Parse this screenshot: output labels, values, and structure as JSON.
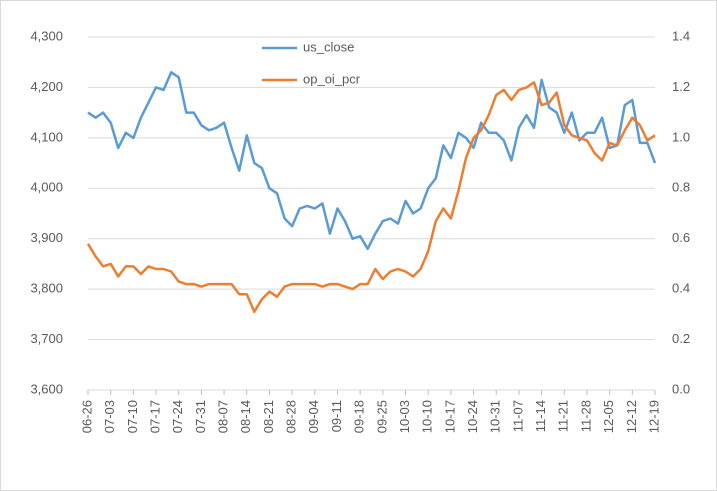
{
  "chart_data": {
    "type": "line",
    "categories": [
      "06-26",
      null,
      null,
      "07-03",
      null,
      null,
      "07-10",
      null,
      null,
      "07-17",
      null,
      null,
      "07-24",
      null,
      null,
      "07-31",
      null,
      null,
      "08-07",
      null,
      null,
      "08-14",
      null,
      null,
      "08-21",
      null,
      null,
      "08-28",
      null,
      null,
      "09-04",
      null,
      null,
      "09-11",
      null,
      null,
      "09-18",
      null,
      null,
      "09-25",
      null,
      null,
      "10-03",
      null,
      null,
      "10-10",
      null,
      null,
      "10-17",
      null,
      null,
      "10-24",
      null,
      null,
      "10-31",
      null,
      null,
      "11-07",
      null,
      null,
      "11-14",
      null,
      null,
      "11-21",
      null,
      null,
      "11-28",
      null,
      null,
      "12-05",
      null,
      null,
      "12-12",
      null,
      null,
      "12-19"
    ],
    "series": [
      {
        "name": "us_close",
        "color": "#5b9bd5",
        "values": [
          4150,
          4140,
          4150,
          4130,
          4080,
          4110,
          4100,
          4140,
          4170,
          4200,
          4195,
          4230,
          4220,
          4150,
          4150,
          4125,
          4115,
          4120,
          4130,
          4080,
          4035,
          4105,
          4050,
          4040,
          4000,
          3990,
          3940,
          3925,
          3960,
          3965,
          3960,
          3970,
          3910,
          3960,
          3935,
          3900,
          3905,
          3880,
          3910,
          3935,
          3940,
          3930,
          3975,
          3950,
          3960,
          4000,
          4020,
          4085,
          4060,
          4110,
          4100,
          4080,
          4130,
          4110,
          4110,
          4095,
          4055,
          4120,
          4145,
          4120,
          4215,
          4160,
          4150,
          4110,
          4150,
          4095,
          4110,
          4110,
          4140,
          4080,
          4085,
          4165,
          4175,
          4090,
          4090,
          4050
        ]
      },
      {
        "name": "op_oi_pcr",
        "color": "#ed7d31",
        "axis": "y2",
        "values": [
          0.58,
          0.53,
          0.49,
          0.5,
          0.45,
          0.49,
          0.49,
          0.46,
          0.49,
          0.48,
          0.48,
          0.47,
          0.43,
          0.42,
          0.42,
          0.41,
          0.42,
          0.42,
          0.42,
          0.42,
          0.38,
          0.38,
          0.31,
          0.36,
          0.39,
          0.37,
          0.41,
          0.42,
          0.42,
          0.42,
          0.42,
          0.41,
          0.42,
          0.42,
          0.41,
          0.4,
          0.42,
          0.42,
          0.48,
          0.44,
          0.47,
          0.48,
          0.47,
          0.45,
          0.48,
          0.55,
          0.67,
          0.72,
          0.68,
          0.79,
          0.92,
          1.0,
          1.03,
          1.09,
          1.17,
          1.19,
          1.15,
          1.19,
          1.2,
          1.22,
          1.13,
          1.14,
          1.18,
          1.05,
          1.01,
          1.0,
          0.99,
          0.94,
          0.91,
          0.98,
          0.97,
          1.03,
          1.08,
          1.05,
          0.99,
          1.01
        ]
      }
    ],
    "ylim": [
      3600,
      4300
    ],
    "yticks": [
      {
        "value": 3600,
        "label": "3,600"
      },
      {
        "value": 3700,
        "label": "3,700"
      },
      {
        "value": 3800,
        "label": "3,800"
      },
      {
        "value": 3900,
        "label": "3,900"
      },
      {
        "value": 4000,
        "label": "4,000"
      },
      {
        "value": 4100,
        "label": "4,100"
      },
      {
        "value": 4200,
        "label": "4,200"
      },
      {
        "value": 4300,
        "label": "4,300"
      }
    ],
    "y2lim": [
      0,
      1.4
    ],
    "y2ticks": [
      {
        "value": 0,
        "label": "0.0"
      },
      0.2,
      0.4,
      0.6,
      0.8,
      {
        "value": 1,
        "label": "1.0"
      },
      1.2,
      1.4
    ],
    "grid": true,
    "legend": "top"
  }
}
